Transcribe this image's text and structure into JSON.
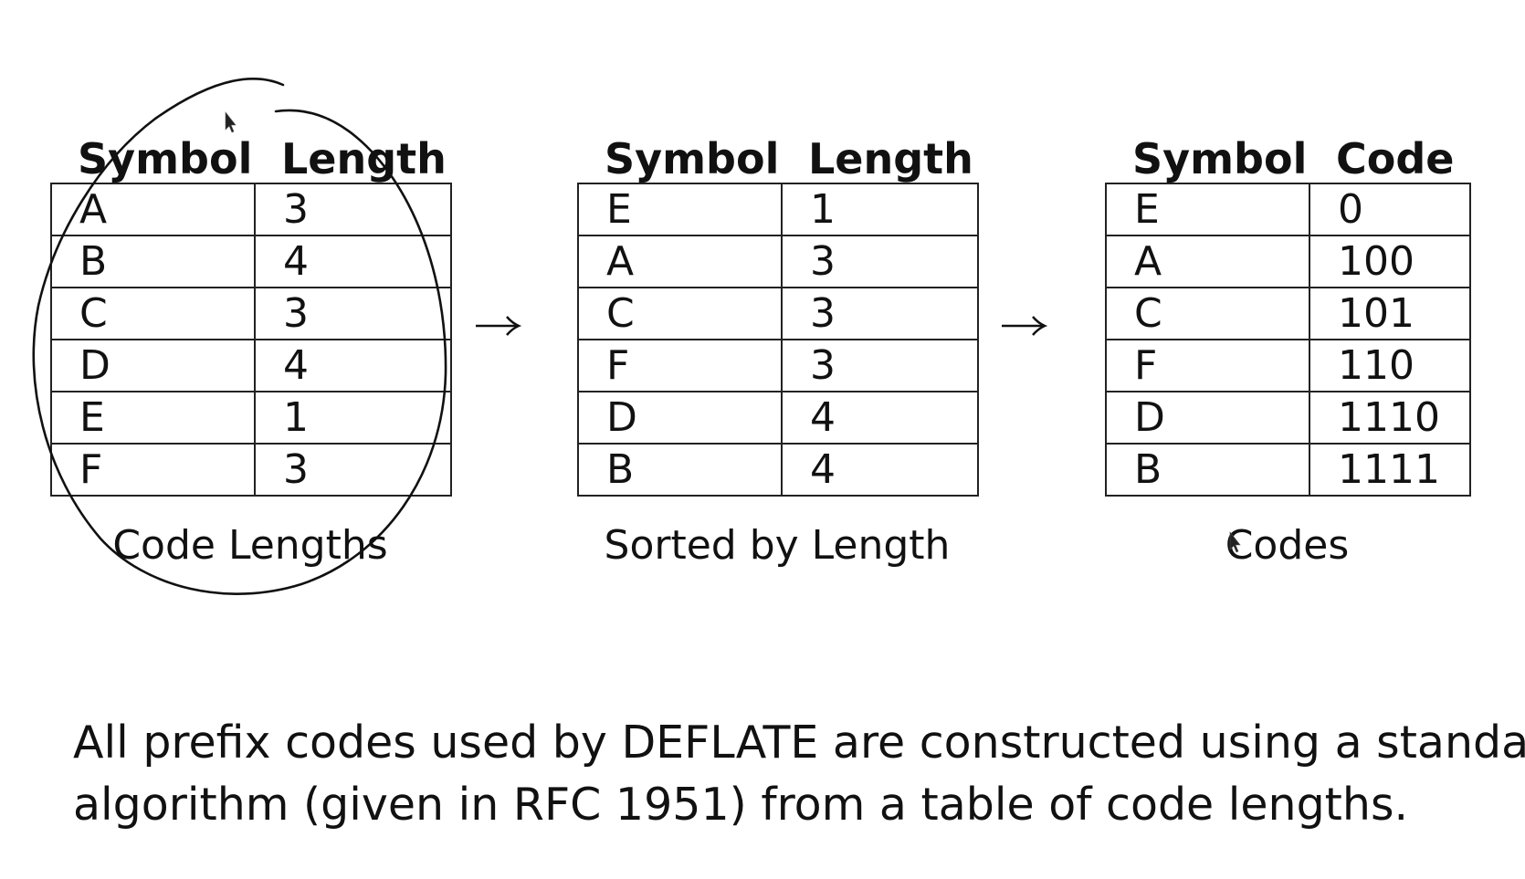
{
  "tables": [
    {
      "headers": [
        "Symbol",
        "Length"
      ],
      "rows": [
        [
          "A",
          "3"
        ],
        [
          "B",
          "4"
        ],
        [
          "C",
          "3"
        ],
        [
          "D",
          "4"
        ],
        [
          "E",
          "1"
        ],
        [
          "F",
          "3"
        ]
      ],
      "caption": "Code Lengths"
    },
    {
      "headers": [
        "Symbol",
        "Length"
      ],
      "rows": [
        [
          "E",
          "1"
        ],
        [
          "A",
          "3"
        ],
        [
          "C",
          "3"
        ],
        [
          "F",
          "3"
        ],
        [
          "D",
          "4"
        ],
        [
          "B",
          "4"
        ]
      ],
      "caption": "Sorted by Length"
    },
    {
      "headers": [
        "Symbol",
        "Code"
      ],
      "rows": [
        [
          "E",
          "0"
        ],
        [
          "A",
          "100"
        ],
        [
          "C",
          "101"
        ],
        [
          "F",
          "110"
        ],
        [
          "D",
          "1110"
        ],
        [
          "B",
          "1111"
        ]
      ],
      "caption": "Codes"
    }
  ],
  "arrows": [
    "→",
    "→"
  ],
  "paragraph": {
    "line1": "All prefix codes used by DEFLATE are constructed using a standard",
    "line2": "algorithm (given in RFC 1951) from a table of code lengths."
  },
  "annotation": {
    "ink_color": "#111111"
  }
}
